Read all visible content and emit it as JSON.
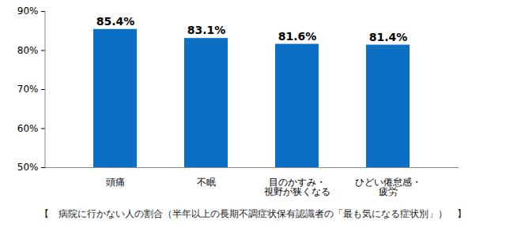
{
  "chart_data": {
    "type": "bar",
    "title": "【　病院に行かない人の割合（半年以上の長期不調症状保有認識者の「最も気になる症状別」）　】",
    "categories": [
      "頭痛",
      "不眠",
      "目のかすみ・\n視野が狭くなる",
      "ひどい倦怠感・\n疲労"
    ],
    "values": [
      85.4,
      83.1,
      81.6,
      81.4
    ],
    "value_labels": [
      "85.4%",
      "83.1%",
      "81.6%",
      "81.4%"
    ],
    "color": "#0b6fc4",
    "ylim": [
      50,
      90
    ],
    "yticks": [
      {
        "value": 50,
        "label": "50%"
      },
      {
        "value": 60,
        "label": "60%"
      },
      {
        "value": 70,
        "label": "70%"
      },
      {
        "value": 80,
        "label": "80%"
      },
      {
        "value": 90,
        "label": "90%"
      }
    ],
    "grid": false,
    "data_labels": true
  }
}
